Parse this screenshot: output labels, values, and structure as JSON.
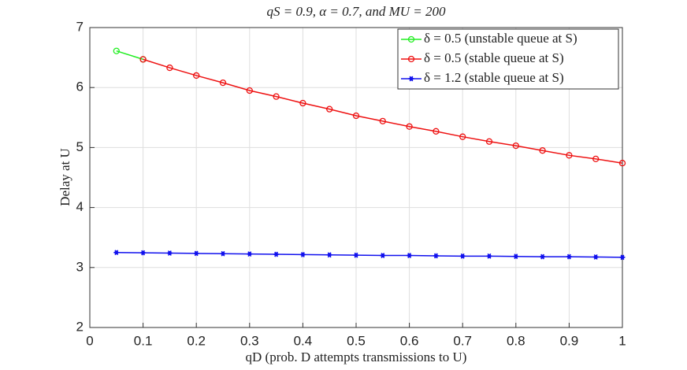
{
  "chart_data": {
    "type": "line",
    "title": "qS = 0.9, α = 0.7, and MU = 200",
    "xlabel": "qD (prob. D attempts transmissions to U)",
    "ylabel": "Delay at U",
    "xlim": [
      0,
      1
    ],
    "ylim": [
      2,
      7
    ],
    "xticks": [
      0,
      0.1,
      0.2,
      0.3,
      0.4,
      0.5,
      0.6,
      0.7,
      0.8,
      0.9,
      1
    ],
    "yticks": [
      2,
      3,
      4,
      5,
      6,
      7
    ],
    "grid": true,
    "legend": "upper right",
    "series": [
      {
        "name": "δ = 0.5 (unstable queue at S)",
        "color": "#22ee22",
        "marker": "circle",
        "x": [
          0.05,
          0.1
        ],
        "values": [
          6.61,
          6.47
        ]
      },
      {
        "name": "δ = 0.5 (stable queue at S)",
        "color": "#ee1111",
        "marker": "circle",
        "x": [
          0.1,
          0.15,
          0.2,
          0.25,
          0.3,
          0.35,
          0.4,
          0.45,
          0.5,
          0.55,
          0.6,
          0.65,
          0.7,
          0.75,
          0.8,
          0.85,
          0.9,
          0.95,
          1
        ],
        "values": [
          6.47,
          6.33,
          6.2,
          6.08,
          5.95,
          5.85,
          5.74,
          5.64,
          5.53,
          5.44,
          5.35,
          5.27,
          5.18,
          5.1,
          5.03,
          4.95,
          4.87,
          4.81,
          4.74
        ]
      },
      {
        "name": "δ = 1.2 (stable queue at S)",
        "color": "#1111ee",
        "marker": "star",
        "x": [
          0.05,
          0.1,
          0.15,
          0.2,
          0.25,
          0.3,
          0.35,
          0.4,
          0.45,
          0.5,
          0.55,
          0.6,
          0.65,
          0.7,
          0.75,
          0.8,
          0.85,
          0.9,
          0.95,
          1
        ],
        "values": [
          3.25,
          3.245,
          3.24,
          3.235,
          3.23,
          3.225,
          3.22,
          3.215,
          3.21,
          3.205,
          3.2,
          3.2,
          3.195,
          3.19,
          3.19,
          3.185,
          3.18,
          3.18,
          3.175,
          3.17
        ]
      }
    ]
  }
}
